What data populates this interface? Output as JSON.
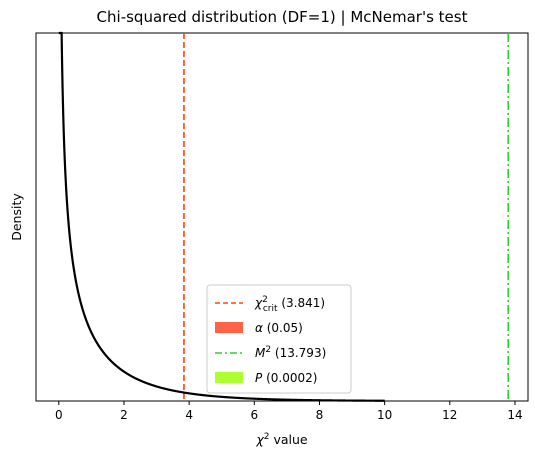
{
  "chart_data": {
    "type": "line",
    "title": "Chi-squared distribution (DF=1) | McNemar's test",
    "xlabel_base": "χ",
    "xlabel_sup": "2",
    "xlabel_rest": " value",
    "ylabel": "Density",
    "df": 1,
    "xlim": [
      -0.7,
      14.4
    ],
    "ylim": [
      0,
      1.3
    ],
    "x_ticks": [
      0,
      2,
      4,
      6,
      8,
      10,
      12,
      14
    ],
    "x_tick_labels": [
      "0",
      "2",
      "4",
      "6",
      "8",
      "10",
      "12",
      "14"
    ],
    "y_ticks_shown": false,
    "curve_x_range": [
      0,
      10
    ],
    "chi2_crit": 3.841,
    "m2": 13.793,
    "colors": {
      "curve": "#000000",
      "crit_line": "#FF4500",
      "alpha_fill": "#FF6347",
      "m2_line": "#32CD32",
      "p_fill": "#ADFF2F"
    },
    "legend": {
      "placement": "lower-center",
      "items": [
        {
          "key": "crit",
          "base": "χ",
          "sup": "2",
          "sub": "crit",
          "value": " (3.841)",
          "style": "dashed",
          "color": "#FF4500"
        },
        {
          "key": "alpha",
          "base": "α",
          "sup": "",
          "sub": "",
          "value": " (0.05)",
          "style": "patch",
          "color": "#FF6347"
        },
        {
          "key": "m2",
          "base": "M",
          "sup": "2",
          "sub": "",
          "value": " (13.793)",
          "style": "dashdot",
          "color": "#32CD32"
        },
        {
          "key": "p",
          "base": "P",
          "sup": "",
          "sub": "",
          "value": " (0.0002)",
          "style": "patch",
          "color": "#ADFF2F"
        }
      ]
    }
  }
}
